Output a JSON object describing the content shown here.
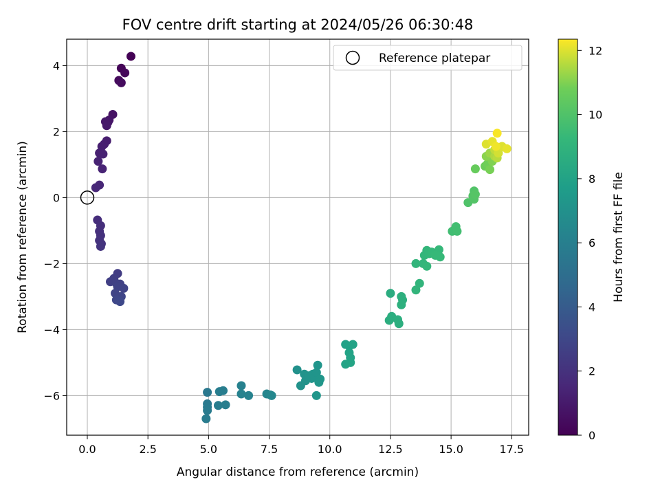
{
  "chart_data": {
    "type": "scatter",
    "title": "FOV centre drift starting at 2024/05/26 06:30:48",
    "xlabel": "Angular distance from reference (arcmin)",
    "ylabel": "Rotation from reference (arcmin)",
    "xlim": [
      -0.85,
      18.2
    ],
    "ylim": [
      -7.2,
      4.8
    ],
    "x_ticks": [
      0.0,
      2.5,
      5.0,
      7.5,
      10.0,
      12.5,
      15.0,
      17.5
    ],
    "x_tick_labels": [
      "0.0",
      "2.5",
      "5.0",
      "7.5",
      "10.0",
      "12.5",
      "15.0",
      "17.5"
    ],
    "y_ticks": [
      -6,
      -4,
      -2,
      0,
      2,
      4
    ],
    "y_tick_labels": [
      "−6",
      "−4",
      "−2",
      "0",
      "2",
      "4"
    ],
    "grid": true,
    "colormap": "viridis",
    "colorbar": {
      "label": "Hours from first FF file",
      "range": [
        0,
        12.35
      ],
      "ticks": [
        0,
        2,
        4,
        6,
        8,
        10,
        12
      ],
      "tick_labels": [
        "0",
        "2",
        "4",
        "6",
        "8",
        "10",
        "12"
      ]
    },
    "legend": {
      "position": "top-right",
      "entries": [
        {
          "marker": "open-circle",
          "label": "Reference platepar"
        }
      ]
    },
    "reference_point": {
      "x": 0.0,
      "y": 0.0
    },
    "series": [
      {
        "points": [
          [
            1.8,
            4.28,
            0.05
          ],
          [
            1.4,
            3.92,
            0.15
          ],
          [
            1.55,
            3.78,
            0.25
          ],
          [
            1.3,
            3.55,
            0.35
          ],
          [
            1.4,
            3.48,
            0.45
          ],
          [
            1.05,
            2.52,
            0.7
          ],
          [
            0.9,
            2.35,
            0.8
          ],
          [
            0.85,
            2.28,
            0.85
          ],
          [
            0.75,
            2.3,
            0.9
          ],
          [
            0.8,
            2.18,
            0.95
          ],
          [
            0.8,
            1.72,
            1.1
          ],
          [
            0.7,
            1.62,
            1.15
          ],
          [
            0.6,
            1.55,
            1.2
          ],
          [
            0.5,
            1.35,
            1.25
          ],
          [
            0.65,
            1.32,
            1.3
          ],
          [
            0.45,
            1.1,
            1.35
          ],
          [
            0.62,
            0.87,
            1.4
          ],
          [
            0.5,
            0.38,
            1.5
          ],
          [
            0.35,
            0.3,
            1.55
          ],
          [
            0.42,
            -0.68,
            1.8
          ],
          [
            0.55,
            -0.85,
            1.85
          ],
          [
            0.5,
            -1.02,
            1.9
          ],
          [
            0.55,
            -1.15,
            1.95
          ],
          [
            0.5,
            -1.3,
            2.0
          ],
          [
            0.58,
            -1.4,
            2.05
          ],
          [
            0.55,
            -1.48,
            2.1
          ],
          [
            1.25,
            -2.3,
            2.5
          ],
          [
            1.1,
            -2.45,
            2.55
          ],
          [
            0.95,
            -2.55,
            2.6
          ],
          [
            1.2,
            -2.6,
            2.65
          ],
          [
            1.35,
            -2.62,
            2.7
          ],
          [
            1.25,
            -2.7,
            2.75
          ],
          [
            1.5,
            -2.75,
            2.8
          ],
          [
            1.15,
            -2.9,
            2.85
          ],
          [
            1.4,
            -3.0,
            2.9
          ],
          [
            1.3,
            -3.1,
            2.95
          ],
          [
            1.2,
            -3.1,
            3.0
          ],
          [
            1.35,
            -3.15,
            3.05
          ],
          [
            4.95,
            -5.9,
            5.6
          ],
          [
            4.95,
            -6.25,
            5.65
          ],
          [
            4.95,
            -6.35,
            5.7
          ],
          [
            4.95,
            -6.45,
            5.75
          ],
          [
            4.9,
            -6.7,
            5.8
          ],
          [
            5.45,
            -5.88,
            5.85
          ],
          [
            5.6,
            -5.85,
            5.9
          ],
          [
            5.4,
            -6.3,
            5.9
          ],
          [
            5.7,
            -6.28,
            5.95
          ],
          [
            6.35,
            -5.7,
            6.1
          ],
          [
            6.35,
            -5.95,
            6.15
          ],
          [
            6.65,
            -6.0,
            6.2
          ],
          [
            7.4,
            -5.95,
            6.35
          ],
          [
            7.55,
            -5.98,
            6.4
          ],
          [
            7.6,
            -6.0,
            6.45
          ],
          [
            8.65,
            -5.22,
            7.0
          ],
          [
            8.8,
            -5.7,
            7.05
          ],
          [
            8.95,
            -5.35,
            7.1
          ],
          [
            9.0,
            -5.55,
            7.1
          ],
          [
            9.15,
            -5.4,
            7.15
          ],
          [
            9.25,
            -5.48,
            7.15
          ],
          [
            9.3,
            -5.35,
            7.2
          ],
          [
            9.4,
            -5.45,
            7.2
          ],
          [
            9.5,
            -5.08,
            7.25
          ],
          [
            9.45,
            -5.3,
            7.25
          ],
          [
            9.6,
            -5.5,
            7.3
          ],
          [
            9.55,
            -5.6,
            7.3
          ],
          [
            9.45,
            -6.0,
            7.3
          ],
          [
            10.65,
            -4.45,
            7.9
          ],
          [
            10.8,
            -4.5,
            7.95
          ],
          [
            10.95,
            -4.45,
            8.0
          ],
          [
            10.8,
            -4.7,
            8.0
          ],
          [
            10.85,
            -4.85,
            8.05
          ],
          [
            10.65,
            -5.05,
            8.05
          ],
          [
            10.85,
            -5.0,
            8.1
          ],
          [
            12.5,
            -2.9,
            8.6
          ],
          [
            12.55,
            -3.6,
            8.65
          ],
          [
            12.45,
            -3.72,
            8.65
          ],
          [
            12.8,
            -3.7,
            8.7
          ],
          [
            12.85,
            -3.82,
            8.7
          ],
          [
            12.95,
            -3.0,
            8.75
          ],
          [
            13.0,
            -3.1,
            8.75
          ],
          [
            12.95,
            -3.25,
            8.8
          ],
          [
            13.55,
            -2.0,
            9.05
          ],
          [
            13.7,
            -2.6,
            9.05
          ],
          [
            13.55,
            -2.8,
            9.1
          ],
          [
            13.85,
            -2.0,
            9.1
          ],
          [
            13.9,
            -1.75,
            9.15
          ],
          [
            14.0,
            -1.6,
            9.15
          ],
          [
            14.1,
            -1.7,
            9.2
          ],
          [
            14.0,
            -2.08,
            9.2
          ],
          [
            14.2,
            -1.65,
            9.25
          ],
          [
            14.5,
            -1.58,
            9.25
          ],
          [
            14.55,
            -1.8,
            9.3
          ],
          [
            14.35,
            -1.75,
            9.3
          ],
          [
            15.05,
            -1.02,
            9.6
          ],
          [
            15.2,
            -0.88,
            9.65
          ],
          [
            15.25,
            -1.02,
            9.65
          ],
          [
            15.7,
            -0.15,
            10.0
          ],
          [
            15.95,
            0.2,
            10.05
          ],
          [
            15.9,
            0.05,
            10.1
          ],
          [
            15.95,
            -0.05,
            10.1
          ],
          [
            16.0,
            0.1,
            10.15
          ],
          [
            16.0,
            0.87,
            10.6
          ],
          [
            16.4,
            0.95,
            10.7
          ],
          [
            16.5,
            1.02,
            10.8
          ],
          [
            16.6,
            0.85,
            10.9
          ],
          [
            16.7,
            1.1,
            11.0
          ],
          [
            16.45,
            1.25,
            11.1
          ],
          [
            16.6,
            1.35,
            11.3
          ],
          [
            16.8,
            1.25,
            11.5
          ],
          [
            16.9,
            1.2,
            11.6
          ],
          [
            16.8,
            1.45,
            11.7
          ],
          [
            17.0,
            1.5,
            11.8
          ],
          [
            16.95,
            1.35,
            11.9
          ],
          [
            17.1,
            1.55,
            12.0
          ],
          [
            17.3,
            1.48,
            12.1
          ],
          [
            16.45,
            1.62,
            12.0
          ],
          [
            16.7,
            1.7,
            12.1
          ],
          [
            16.85,
            1.55,
            12.2
          ],
          [
            16.9,
            1.95,
            12.3
          ]
        ]
      }
    ]
  }
}
